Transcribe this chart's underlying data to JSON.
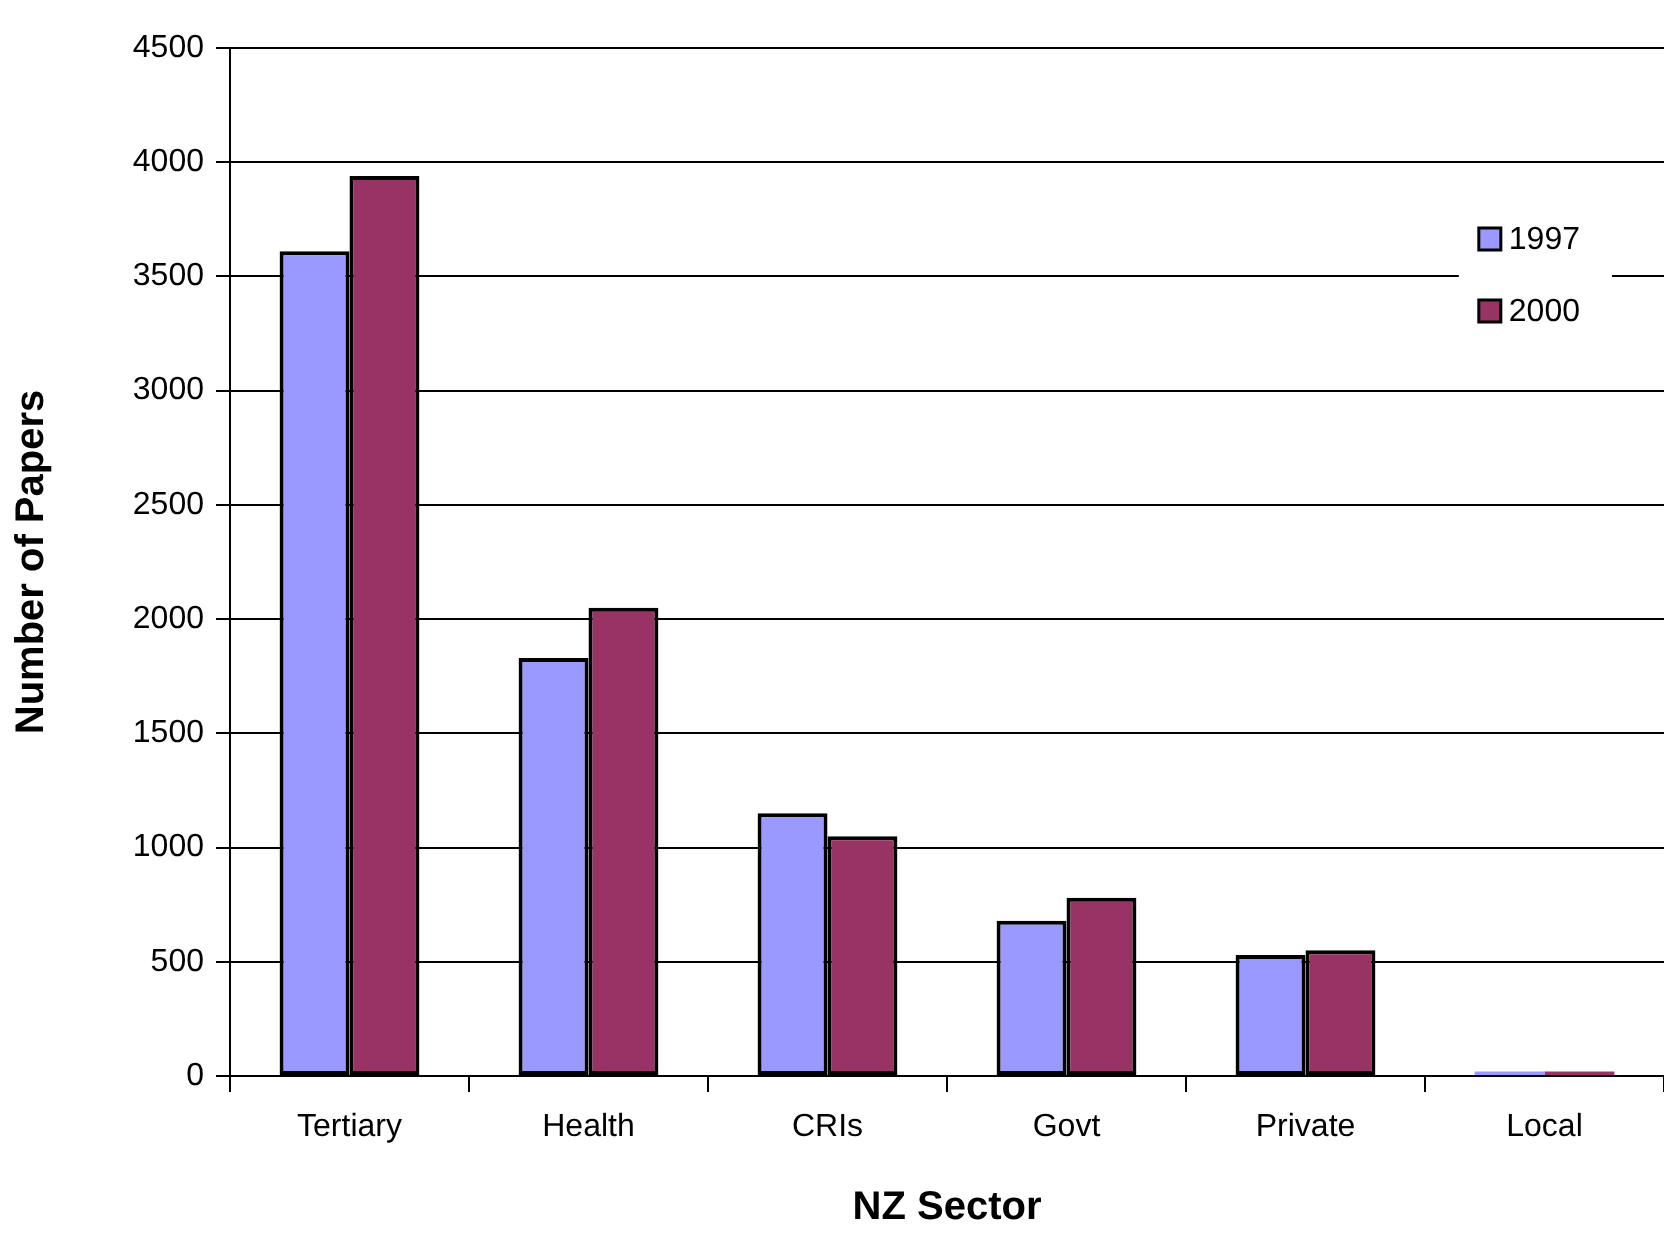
{
  "chart_data": {
    "type": "bar",
    "xlabel": "NZ Sector",
    "ylabel": "Number of Papers",
    "categories": [
      "Tertiary",
      "Health",
      "CRIs",
      "Govt",
      "Private",
      "Local"
    ],
    "series": [
      {
        "name": "1997",
        "color": "#9999ff",
        "values": [
          3610,
          1830,
          1150,
          680,
          530,
          20
        ]
      },
      {
        "name": "2000",
        "color": "#993366",
        "values": [
          3940,
          2050,
          1050,
          780,
          550,
          20
        ]
      }
    ],
    "ylim": [
      0,
      4500
    ],
    "yticks": [
      0,
      500,
      1000,
      1500,
      2000,
      2500,
      3000,
      3500,
      4000,
      4500
    ],
    "grid": "y",
    "legend": "top right"
  }
}
